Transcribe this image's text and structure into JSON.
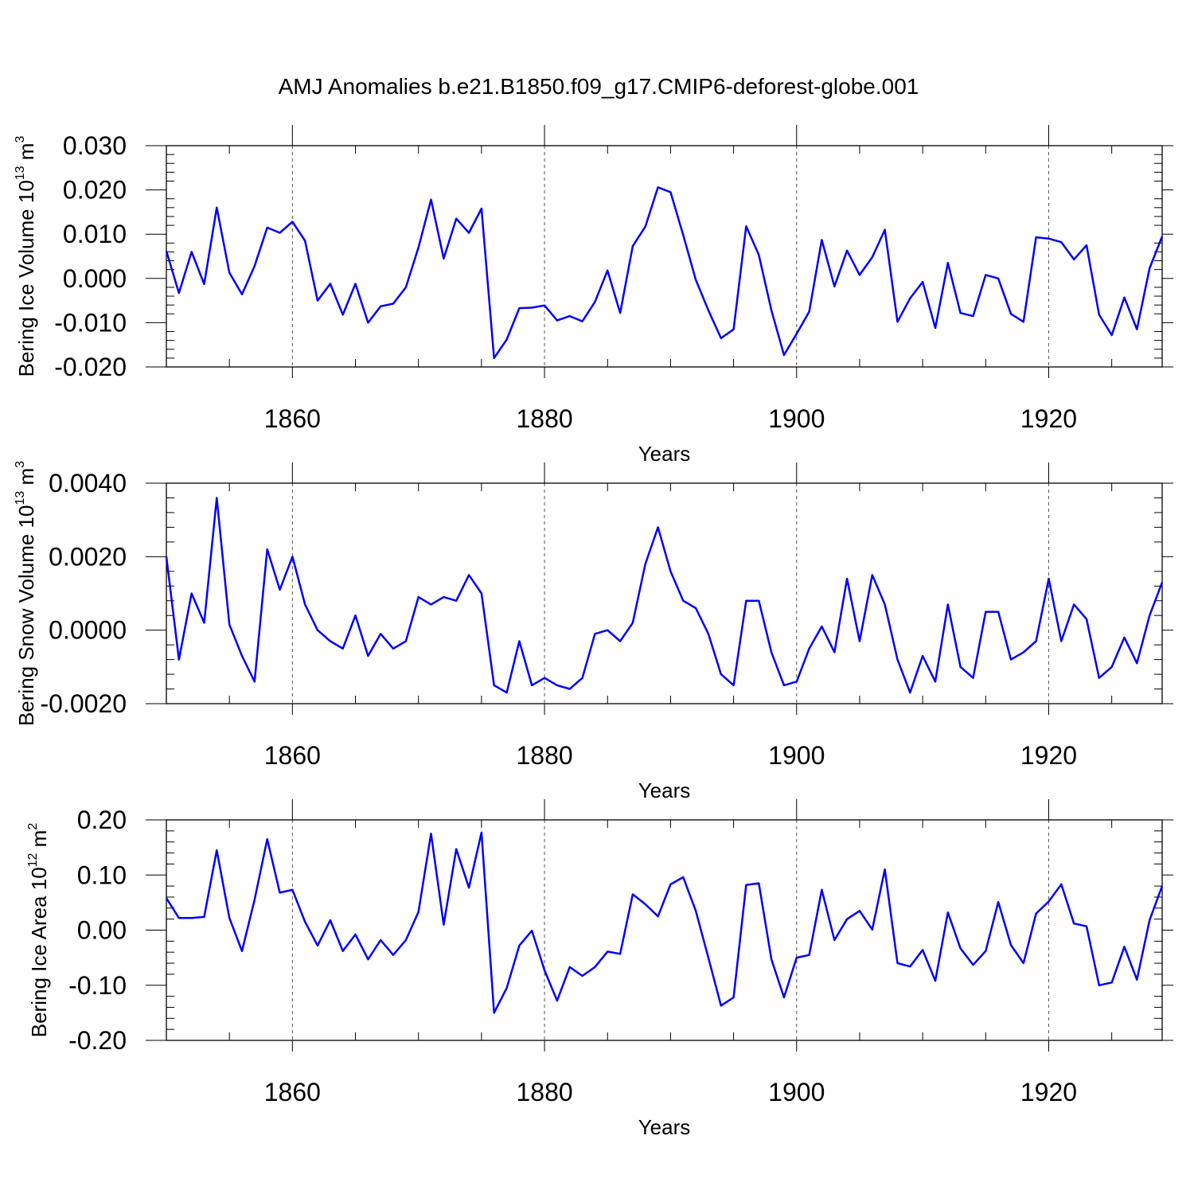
{
  "title": "AMJ Anomalies b.e21.B1850.f09_g17.CMIP6-deforest-globe.001",
  "colors": {
    "line": "#0000ff",
    "frame": "#000000",
    "grid": "#555555"
  },
  "chart_data": [
    {
      "type": "line",
      "ylabel": "Bering Ice Volume 10",
      "ylabel_exp": "13",
      "ylabel_unit": " m",
      "ylabel_unit_exp": "3",
      "xlabel": "Years",
      "xlim": [
        1850,
        1929
      ],
      "ylim": [
        -0.02,
        0.03
      ],
      "yticks": [
        -0.02,
        -0.01,
        0.0,
        0.01,
        0.02,
        0.03
      ],
      "ytick_labels": [
        "-0.020",
        "-0.010",
        "0.000",
        "0.010",
        "0.020",
        "0.030"
      ],
      "xticks": [
        1860,
        1880,
        1900,
        1920
      ],
      "xtick_labels": [
        "1860",
        "1880",
        "1900",
        "1920"
      ],
      "grid_x": true,
      "x_start": 1850,
      "values": [
        0.0062,
        -0.0033,
        0.006,
        -0.0013,
        0.016,
        0.0013,
        -0.0036,
        0.0028,
        0.0115,
        0.0103,
        0.0128,
        0.0085,
        -0.005,
        -0.0012,
        -0.0082,
        -0.0012,
        -0.01,
        -0.0063,
        -0.0057,
        -0.002,
        0.007,
        0.0178,
        0.0045,
        0.0135,
        0.0103,
        0.0158,
        -0.018,
        -0.0138,
        -0.0067,
        -0.0066,
        -0.0061,
        -0.0095,
        -0.0085,
        -0.0097,
        -0.0053,
        0.0018,
        -0.0078,
        0.0073,
        0.0117,
        0.0206,
        0.0195,
        0.0098,
        -0.0003,
        -0.0072,
        -0.0135,
        -0.0115,
        0.0118,
        0.0053,
        -0.0072,
        -0.0173,
        -0.0125,
        -0.0075,
        0.0087,
        -0.0018,
        0.0063,
        0.0008,
        0.0048,
        0.011,
        -0.0098,
        -0.0045,
        -0.0008,
        -0.0112,
        0.0035,
        -0.0078,
        -0.0085,
        0.0008,
        0.0,
        -0.008,
        -0.0098,
        0.0093,
        0.009,
        0.0082,
        0.0043,
        0.0075,
        -0.0082,
        -0.0128,
        -0.0043,
        -0.0115,
        0.0023,
        0.0095
      ]
    },
    {
      "type": "line",
      "ylabel": "Bering Snow Volume 10",
      "ylabel_exp": "13",
      "ylabel_unit": " m",
      "ylabel_unit_exp": "3",
      "xlabel": "Years",
      "xlim": [
        1850,
        1929
      ],
      "ylim": [
        -0.002,
        0.004
      ],
      "yticks": [
        -0.002,
        0.0,
        0.002,
        0.004
      ],
      "ytick_labels": [
        "-0.0020",
        "0.0000",
        "0.0020",
        "0.0040"
      ],
      "xticks": [
        1860,
        1880,
        1900,
        1920
      ],
      "xtick_labels": [
        "1860",
        "1880",
        "1900",
        "1920"
      ],
      "grid_x": true,
      "x_start": 1850,
      "values": [
        0.002,
        -0.0008,
        0.001,
        0.0002,
        0.0036,
        0.00015,
        -0.0007,
        -0.0014,
        0.0022,
        0.0011,
        0.002,
        0.0007,
        0.0,
        -0.0003,
        -0.0005,
        0.0004,
        -0.0007,
        -0.0001,
        -0.0005,
        -0.0003,
        0.0009,
        0.0007,
        0.0009,
        0.0008,
        0.0015,
        0.001,
        -0.0015,
        -0.0017,
        -0.0003,
        -0.0015,
        -0.0013,
        -0.0015,
        -0.0016,
        -0.0013,
        -0.0001,
        0.0,
        -0.0003,
        0.0002,
        0.0018,
        0.0028,
        0.0016,
        0.0008,
        0.0006,
        -0.0001,
        -0.0012,
        -0.0015,
        0.0008,
        0.0008,
        -0.0006,
        -0.0015,
        -0.0014,
        -0.0005,
        0.0001,
        -0.0006,
        0.0014,
        -0.0003,
        0.0015,
        0.0007,
        -0.0008,
        -0.0017,
        -0.0007,
        -0.0014,
        0.0007,
        -0.001,
        -0.0013,
        0.0005,
        0.0005,
        -0.0008,
        -0.0006,
        -0.0003,
        0.0014,
        -0.0003,
        0.0007,
        0.0003,
        -0.0013,
        -0.001,
        -0.0002,
        -0.0009,
        0.0004,
        0.0013
      ]
    },
    {
      "type": "line",
      "ylabel": "Bering Ice Area 10",
      "ylabel_exp": "12",
      "ylabel_unit": " m",
      "ylabel_unit_exp": "2",
      "xlabel": "Years",
      "xlim": [
        1850,
        1929
      ],
      "ylim": [
        -0.2,
        0.2
      ],
      "yticks": [
        -0.2,
        -0.1,
        0.0,
        0.1,
        0.2
      ],
      "ytick_labels": [
        "-0.20",
        "-0.10",
        "0.00",
        "0.10",
        "0.20"
      ],
      "xticks": [
        1860,
        1880,
        1900,
        1920
      ],
      "xtick_labels": [
        "1860",
        "1880",
        "1900",
        "1920"
      ],
      "grid_x": true,
      "x_start": 1850,
      "values": [
        0.058,
        0.022,
        0.022,
        0.024,
        0.145,
        0.022,
        -0.038,
        0.055,
        0.165,
        0.068,
        0.073,
        0.015,
        -0.028,
        0.018,
        -0.038,
        -0.008,
        -0.053,
        -0.018,
        -0.045,
        -0.018,
        0.033,
        0.175,
        0.01,
        0.147,
        0.077,
        0.177,
        -0.15,
        -0.105,
        -0.028,
        -0.001,
        -0.073,
        -0.128,
        -0.067,
        -0.083,
        -0.067,
        -0.039,
        -0.043,
        0.065,
        0.047,
        0.025,
        0.083,
        0.096,
        0.035,
        -0.05,
        -0.137,
        -0.122,
        0.082,
        0.085,
        -0.053,
        -0.122,
        -0.05,
        -0.045,
        0.073,
        -0.018,
        0.02,
        0.035,
        0.001,
        0.11,
        -0.06,
        -0.066,
        -0.036,
        -0.092,
        0.032,
        -0.033,
        -0.063,
        -0.038,
        0.051,
        -0.027,
        -0.06,
        0.03,
        0.052,
        0.083,
        0.012,
        0.007,
        -0.1,
        -0.095,
        -0.03,
        -0.09,
        0.018,
        0.08
      ]
    }
  ]
}
